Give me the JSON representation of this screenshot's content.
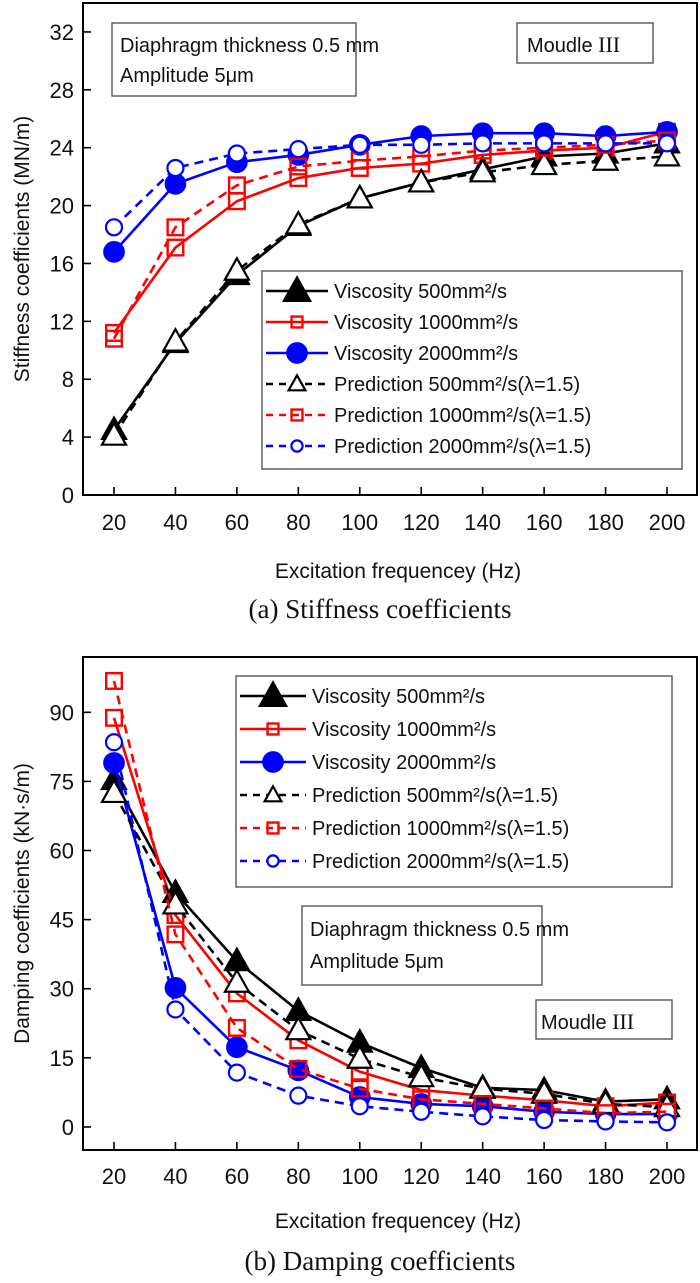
{
  "chart_data": [
    {
      "type": "line",
      "caption": "(a)  Stiffness coefficients",
      "xlabel": "Excitation frequencey (Hz)",
      "ylabel": "Stiffness coefficients (MN/m)",
      "x": [
        20,
        40,
        60,
        80,
        100,
        120,
        140,
        160,
        180,
        200
      ],
      "xticks": [
        "20",
        "40",
        "60",
        "80",
        "100",
        "120",
        "140",
        "160",
        "180",
        "200"
      ],
      "yticks": [
        "0",
        "4",
        "8",
        "12",
        "16",
        "20",
        "24",
        "28",
        "32"
      ],
      "ylim": [
        0,
        34
      ],
      "grid": false,
      "legend_position": "center-right",
      "annotations": [
        {
          "id": "conditions",
          "lines": [
            "Diaphragm thickness 0.5 mm",
            "Amplitude 5μm"
          ],
          "position": "top-left"
        },
        {
          "id": "module",
          "text": "Moudle ",
          "roman": "III",
          "position": "top-right"
        }
      ],
      "series": [
        {
          "name": "Viscosity 500mm²/s",
          "color": "#000000",
          "marker": "triangle-filled",
          "dash": "solid",
          "values": [
            4.5,
            10.5,
            15.2,
            18.6,
            20.5,
            21.6,
            22.5,
            23.4,
            23.6,
            24.3
          ]
        },
        {
          "name": "Viscosity 1000mm²/s",
          "color": "#ff0000",
          "marker": "square-open",
          "dash": "solid",
          "values": [
            11.2,
            17.1,
            20.3,
            21.9,
            22.6,
            22.9,
            23.5,
            23.8,
            24.0,
            25.1
          ]
        },
        {
          "name": "Viscosity 2000mm²/s",
          "color": "#0000ff",
          "marker": "circle-filled",
          "dash": "solid",
          "values": [
            16.8,
            21.5,
            23.0,
            23.5,
            24.2,
            24.8,
            25.0,
            25.0,
            24.8,
            25.1
          ]
        },
        {
          "name": "Prediction 500mm²/s(λ=1.5)",
          "color": "#000000",
          "marker": "triangle-open",
          "dash": "dashed",
          "values": [
            4.1,
            10.6,
            15.5,
            18.7,
            20.5,
            21.6,
            22.3,
            22.8,
            23.1,
            23.4
          ]
        },
        {
          "name": "Prediction 1000mm²/s(λ=1.5)",
          "color": "#ff0000",
          "marker": "square-open",
          "dash": "dashed",
          "values": [
            10.8,
            18.5,
            21.4,
            22.7,
            23.1,
            23.4,
            23.8,
            24.0,
            24.2,
            24.5
          ]
        },
        {
          "name": "Prediction 2000mm²/s(λ=1.5)",
          "color": "#0000ff",
          "marker": "circle-open",
          "dash": "dashed",
          "values": [
            18.5,
            22.6,
            23.6,
            23.9,
            24.2,
            24.2,
            24.3,
            24.3,
            24.3,
            24.3
          ]
        }
      ]
    },
    {
      "type": "line",
      "caption": "(b) Damping coefficients",
      "xlabel": "Excitation frequencey (Hz)",
      "ylabel": "Damping coefficients (kN·s/m)",
      "x": [
        20,
        40,
        60,
        80,
        100,
        120,
        140,
        160,
        180,
        200
      ],
      "xticks": [
        "20",
        "40",
        "60",
        "80",
        "100",
        "120",
        "140",
        "160",
        "180",
        "200"
      ],
      "yticks": [
        "0",
        "15",
        "30",
        "45",
        "60",
        "75",
        "90"
      ],
      "ylim": [
        -5,
        102
      ],
      "grid": false,
      "legend_position": "top-right",
      "annotations": [
        {
          "id": "conditions",
          "lines": [
            "Diaphragm thickness 0.5 mm",
            "Amplitude 5μm"
          ],
          "position": "center-right"
        },
        {
          "id": "module",
          "text": "Moudle ",
          "roman": "III",
          "position": "center-right"
        }
      ],
      "series": [
        {
          "name": "Viscosity 500mm²/s",
          "color": "#000000",
          "marker": "triangle-filled",
          "dash": "solid",
          "values": [
            75.3,
            50.8,
            36.0,
            25.2,
            18.3,
            12.8,
            8.5,
            8.0,
            5.5,
            6.0
          ]
        },
        {
          "name": "Viscosity 1000mm²/s",
          "color": "#ff0000",
          "marker": "square-open",
          "dash": "solid",
          "values": [
            88.8,
            46.0,
            29.0,
            18.8,
            12.0,
            8.0,
            6.8,
            5.8,
            4.5,
            5.3
          ]
        },
        {
          "name": "Viscosity 2000mm²/s",
          "color": "#0000ff",
          "marker": "circle-filled",
          "dash": "solid",
          "values": [
            79.0,
            30.2,
            17.3,
            12.3,
            6.5,
            5.0,
            4.5,
            3.3,
            2.8,
            2.8
          ]
        },
        {
          "name": "Prediction 500mm²/s(λ=1.5)",
          "color": "#000000",
          "marker": "triangle-open",
          "dash": "dashed",
          "values": [
            72.5,
            48.3,
            31.3,
            21.0,
            14.8,
            10.8,
            8.3,
            7.2,
            5.0,
            4.3
          ]
        },
        {
          "name": "Prediction 1000mm²/s(λ=1.5)",
          "color": "#ff0000",
          "marker": "square-open",
          "dash": "dashed",
          "values": [
            96.8,
            41.8,
            21.5,
            12.6,
            8.3,
            6.0,
            5.0,
            4.0,
            3.0,
            3.3
          ]
        },
        {
          "name": "Prediction 2000mm²/s(λ=1.5)",
          "color": "#0000ff",
          "marker": "circle-open",
          "dash": "dashed",
          "values": [
            83.5,
            25.5,
            11.8,
            6.8,
            4.5,
            3.3,
            2.3,
            1.5,
            1.2,
            1.0
          ]
        }
      ]
    }
  ]
}
